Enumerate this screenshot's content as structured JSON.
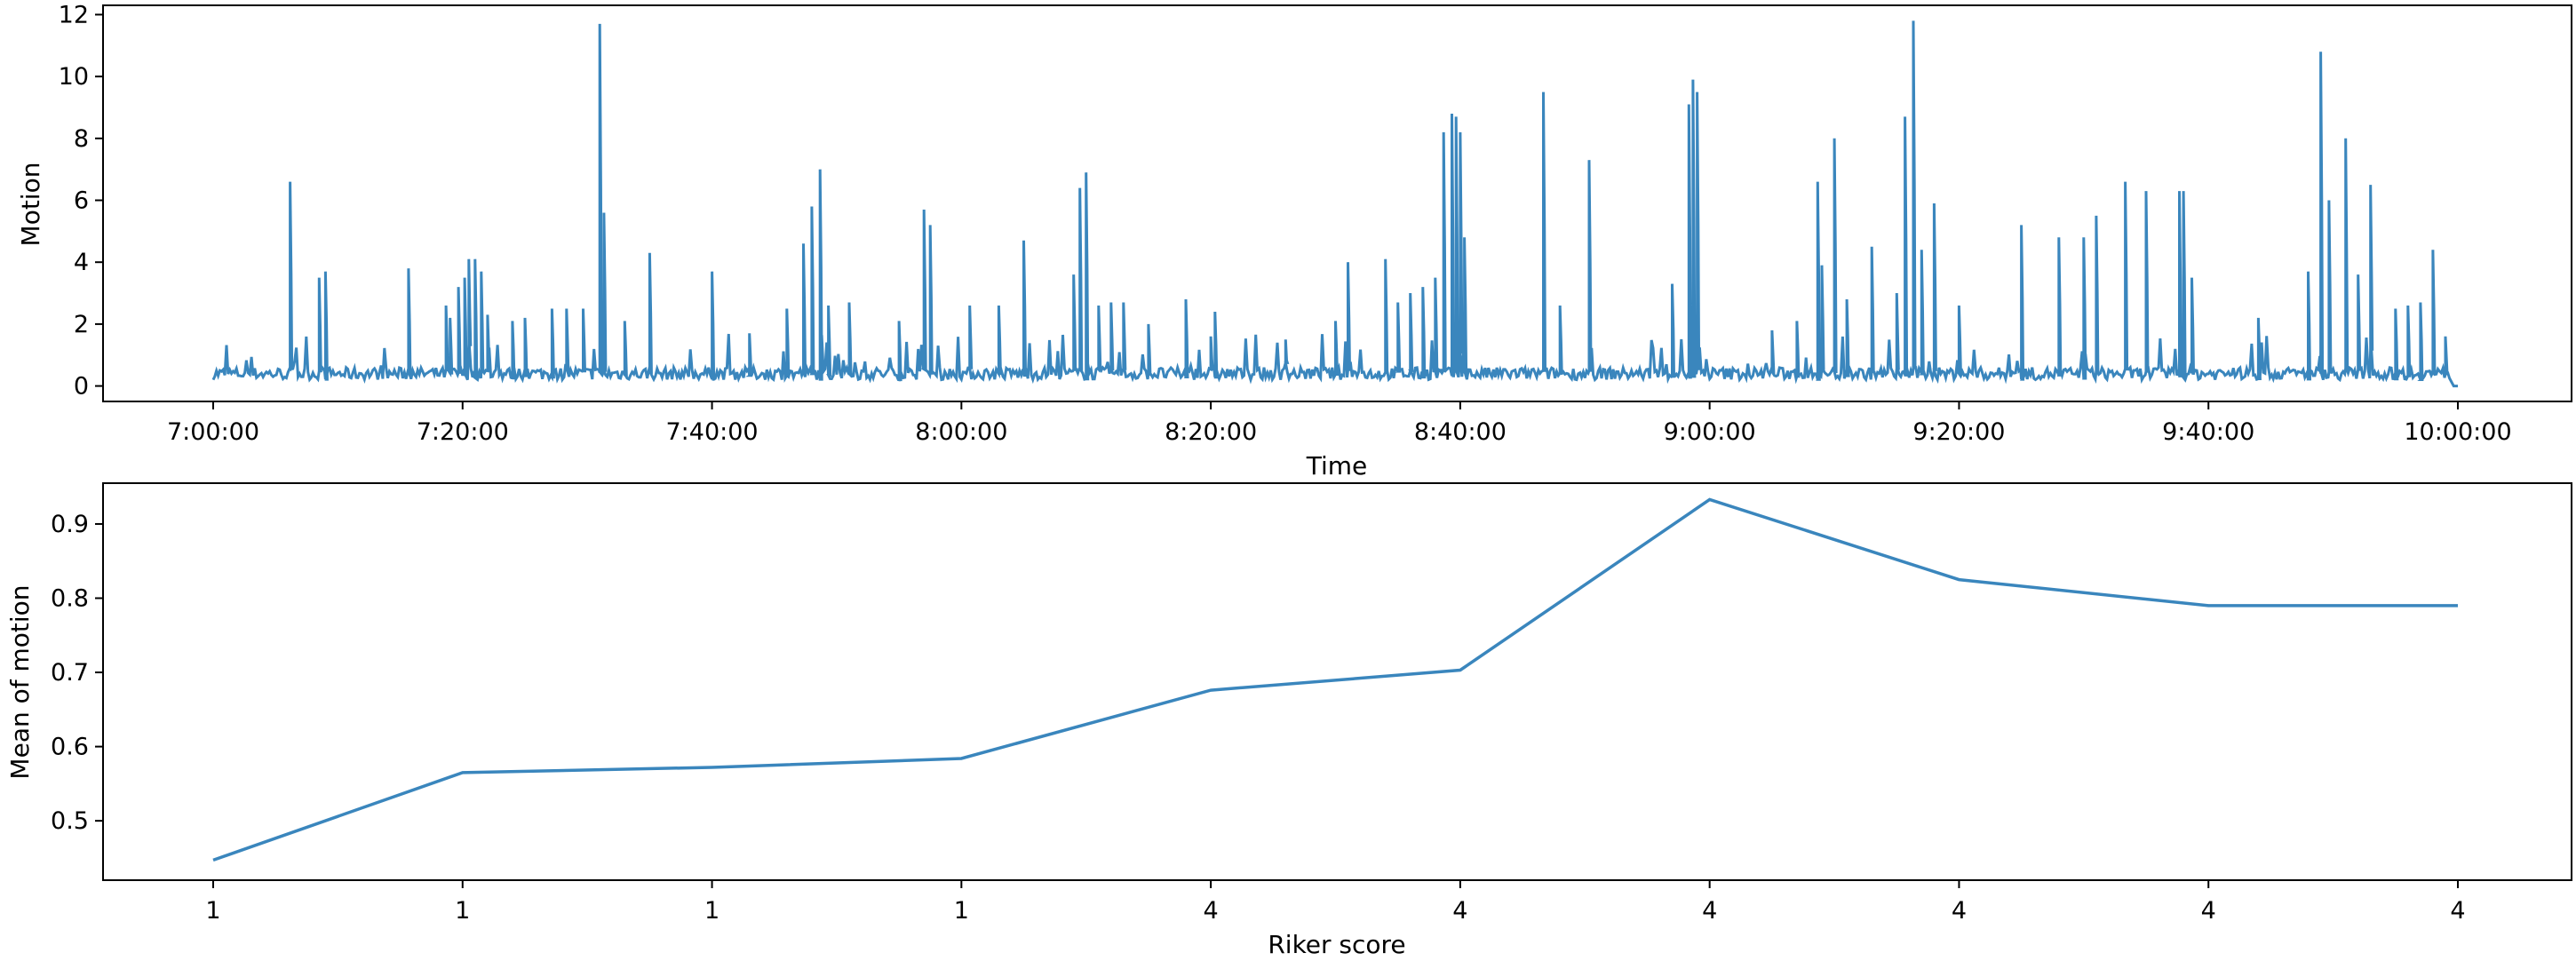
{
  "chart_data": [
    {
      "type": "line",
      "xlabel": "Time",
      "ylabel": "Motion",
      "x_range": [
        "7:00:00",
        "10:00:00"
      ],
      "xticks": [
        "7:00:00",
        "7:20:00",
        "7:40:00",
        "8:00:00",
        "8:20:00",
        "8:40:00",
        "9:00:00",
        "9:20:00",
        "9:40:00",
        "10:00:00"
      ],
      "yticks": [
        0,
        2,
        4,
        6,
        8,
        10,
        12
      ],
      "ylim": [
        -0.5,
        12.3
      ],
      "grid": false,
      "line_color": "#3a86bd",
      "baseline_range": [
        0.2,
        0.6
      ],
      "peaks": [
        {
          "t": "7:06:10",
          "y": 6.6
        },
        {
          "t": "7:08:30",
          "y": 3.5
        },
        {
          "t": "7:09:00",
          "y": 3.7
        },
        {
          "t": "7:15:40",
          "y": 3.8
        },
        {
          "t": "7:18:40",
          "y": 2.6
        },
        {
          "t": "7:19:00",
          "y": 2.2
        },
        {
          "t": "7:19:40",
          "y": 3.2
        },
        {
          "t": "7:20:10",
          "y": 3.5
        },
        {
          "t": "7:20:30",
          "y": 4.1
        },
        {
          "t": "7:21:00",
          "y": 4.1
        },
        {
          "t": "7:21:30",
          "y": 3.7
        },
        {
          "t": "7:22:00",
          "y": 2.3
        },
        {
          "t": "7:24:00",
          "y": 2.1
        },
        {
          "t": "7:25:00",
          "y": 2.2
        },
        {
          "t": "7:27:10",
          "y": 2.5
        },
        {
          "t": "7:28:20",
          "y": 2.5
        },
        {
          "t": "7:29:40",
          "y": 2.5
        },
        {
          "t": "7:31:00",
          "y": 11.7
        },
        {
          "t": "7:31:20",
          "y": 5.6
        },
        {
          "t": "7:33:00",
          "y": 2.1
        },
        {
          "t": "7:35:00",
          "y": 4.3
        },
        {
          "t": "7:40:00",
          "y": 3.7
        },
        {
          "t": "7:43:00",
          "y": 1.7
        },
        {
          "t": "7:46:00",
          "y": 2.5
        },
        {
          "t": "7:47:20",
          "y": 4.6
        },
        {
          "t": "7:48:00",
          "y": 5.8
        },
        {
          "t": "7:48:40",
          "y": 7.0
        },
        {
          "t": "7:49:20",
          "y": 2.6
        },
        {
          "t": "7:51:00",
          "y": 2.7
        },
        {
          "t": "7:55:00",
          "y": 2.1
        },
        {
          "t": "7:57:00",
          "y": 5.7
        },
        {
          "t": "7:57:30",
          "y": 5.2
        },
        {
          "t": "8:00:40",
          "y": 2.6
        },
        {
          "t": "8:03:00",
          "y": 2.6
        },
        {
          "t": "8:05:00",
          "y": 4.7
        },
        {
          "t": "8:09:00",
          "y": 3.6
        },
        {
          "t": "8:09:30",
          "y": 6.4
        },
        {
          "t": "8:10:00",
          "y": 6.9
        },
        {
          "t": "8:11:00",
          "y": 2.6
        },
        {
          "t": "8:12:00",
          "y": 2.7
        },
        {
          "t": "8:13:00",
          "y": 2.7
        },
        {
          "t": "8:15:00",
          "y": 2.0
        },
        {
          "t": "8:18:00",
          "y": 2.8
        },
        {
          "t": "8:20:00",
          "y": 1.6
        },
        {
          "t": "8:20:20",
          "y": 2.4
        },
        {
          "t": "8:26:00",
          "y": 1.5
        },
        {
          "t": "8:30:00",
          "y": 2.1
        },
        {
          "t": "8:31:00",
          "y": 4.0
        },
        {
          "t": "8:34:00",
          "y": 4.1
        },
        {
          "t": "8:35:00",
          "y": 2.7
        },
        {
          "t": "8:36:00",
          "y": 3.0
        },
        {
          "t": "8:37:00",
          "y": 3.2
        },
        {
          "t": "8:38:00",
          "y": 3.5
        },
        {
          "t": "8:38:40",
          "y": 8.2
        },
        {
          "t": "8:39:20",
          "y": 8.8
        },
        {
          "t": "8:39:40",
          "y": 8.7
        },
        {
          "t": "8:40:00",
          "y": 8.2
        },
        {
          "t": "8:40:20",
          "y": 4.8
        },
        {
          "t": "8:46:40",
          "y": 9.5
        },
        {
          "t": "8:48:00",
          "y": 2.6
        },
        {
          "t": "8:50:20",
          "y": 7.3
        },
        {
          "t": "8:57:00",
          "y": 3.3
        },
        {
          "t": "8:58:20",
          "y": 9.1
        },
        {
          "t": "8:58:40",
          "y": 9.9
        },
        {
          "t": "8:59:00",
          "y": 9.5
        },
        {
          "t": "9:05:00",
          "y": 1.8
        },
        {
          "t": "9:07:00",
          "y": 2.1
        },
        {
          "t": "9:08:40",
          "y": 6.6
        },
        {
          "t": "9:09:00",
          "y": 3.9
        },
        {
          "t": "9:10:00",
          "y": 8.0
        },
        {
          "t": "9:11:00",
          "y": 2.8
        },
        {
          "t": "9:13:00",
          "y": 4.5
        },
        {
          "t": "9:15:00",
          "y": 3.0
        },
        {
          "t": "9:15:40",
          "y": 8.7
        },
        {
          "t": "9:16:20",
          "y": 11.8
        },
        {
          "t": "9:17:00",
          "y": 4.4
        },
        {
          "t": "9:18:00",
          "y": 5.9
        },
        {
          "t": "9:20:00",
          "y": 2.6
        },
        {
          "t": "9:25:00",
          "y": 5.2
        },
        {
          "t": "9:28:00",
          "y": 4.8
        },
        {
          "t": "9:30:00",
          "y": 4.8
        },
        {
          "t": "9:31:00",
          "y": 5.5
        },
        {
          "t": "9:33:20",
          "y": 6.6
        },
        {
          "t": "9:35:00",
          "y": 6.3
        },
        {
          "t": "9:37:40",
          "y": 6.3
        },
        {
          "t": "9:38:00",
          "y": 6.3
        },
        {
          "t": "9:38:40",
          "y": 3.5
        },
        {
          "t": "9:44:00",
          "y": 2.2
        },
        {
          "t": "9:48:00",
          "y": 3.7
        },
        {
          "t": "9:49:00",
          "y": 10.8
        },
        {
          "t": "9:49:40",
          "y": 6.0
        },
        {
          "t": "9:51:00",
          "y": 8.0
        },
        {
          "t": "9:52:00",
          "y": 3.6
        },
        {
          "t": "9:53:00",
          "y": 6.5
        },
        {
          "t": "9:55:00",
          "y": 2.5
        },
        {
          "t": "9:56:00",
          "y": 2.6
        },
        {
          "t": "9:57:00",
          "y": 2.7
        },
        {
          "t": "9:58:00",
          "y": 4.4
        },
        {
          "t": "9:59:00",
          "y": 1.6
        }
      ]
    },
    {
      "type": "line",
      "xlabel": "Riker score",
      "ylabel": "Mean of motion",
      "categories": [
        "1",
        "1",
        "1",
        "1",
        "4",
        "4",
        "4",
        "4",
        "4",
        "4"
      ],
      "values": [
        0.447,
        0.565,
        0.572,
        0.584,
        0.676,
        0.703,
        0.933,
        0.825,
        0.79,
        0.79
      ],
      "yticks": [
        0.5,
        0.6,
        0.7,
        0.8,
        0.9
      ],
      "ylim": [
        0.42,
        0.955
      ],
      "grid": false,
      "line_color": "#3a86bd"
    }
  ]
}
